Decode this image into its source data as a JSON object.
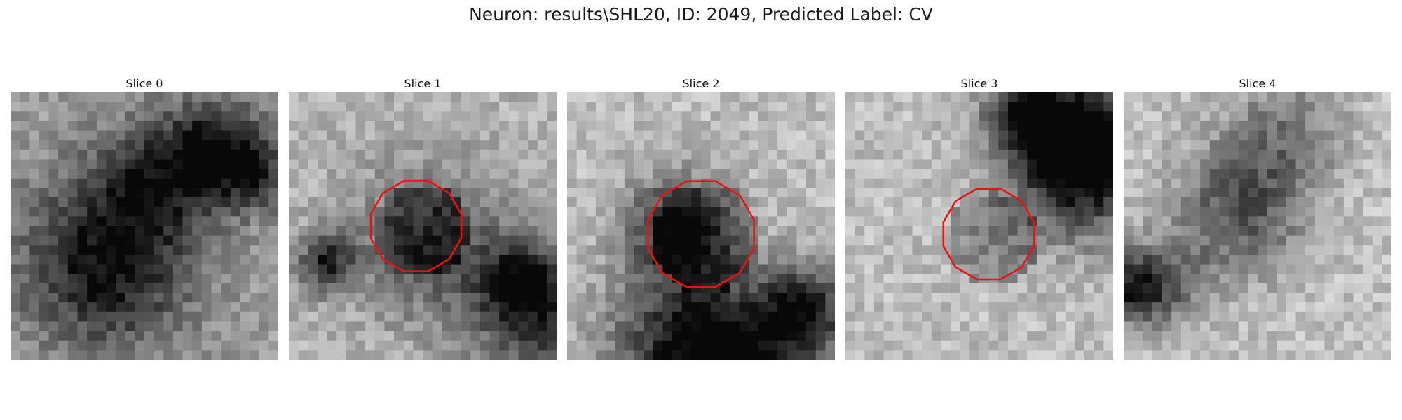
{
  "figure": {
    "title": "Neuron: results\\SHL20, ID: 2049, Predicted Label: CV",
    "contour_color": "#ee1111",
    "slices": [
      {
        "title": "Slice 0",
        "seed": 11,
        "has_contour": false,
        "bright": 0.62
      },
      {
        "title": "Slice 1",
        "seed": 23,
        "has_contour": true,
        "bright": 0.7
      },
      {
        "title": "Slice 2",
        "seed": 37,
        "has_contour": true,
        "bright": 0.74
      },
      {
        "title": "Slice 3",
        "seed": 41,
        "has_contour": true,
        "bright": 0.74
      },
      {
        "title": "Slice 4",
        "seed": 53,
        "has_contour": false,
        "bright": 0.76
      }
    ]
  }
}
